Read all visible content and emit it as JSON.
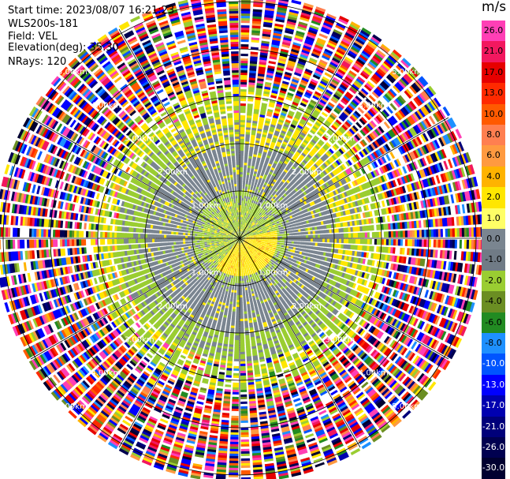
{
  "info": {
    "start_time": "Start time: 2023/08/07 16:21:23",
    "instrument": "WLS200s-181",
    "field": "Field: VEL",
    "elevation": "Elevation(deg): 35.30",
    "nrays": "NRays: 120"
  },
  "colorbar": {
    "unit": "m/s",
    "labels": [
      "26.0",
      "21.0",
      "17.0",
      "13.0",
      "10.0",
      "8.0",
      "6.0",
      "4.0",
      "2.0",
      "1.0",
      "0.0",
      "-1.0",
      "-2.0",
      "-4.0",
      "-6.0",
      "-8.0",
      "-10.0",
      "-13.0",
      "-17.0",
      "-21.0",
      "-26.0",
      "-30.0"
    ],
    "colors": [
      "#ff3fb5",
      "#f2185f",
      "#e60000",
      "#ff2a00",
      "#ff5a00",
      "#ff7f50",
      "#ff9a40",
      "#ffb300",
      "#ffe600",
      "#ffff66",
      "#7a8590",
      "#707b86",
      "#9acd32",
      "#6b8e23",
      "#228b22",
      "#1e90ff",
      "#0055ff",
      "#0000ff",
      "#0000b0",
      "#00007a",
      "#000050",
      "#000030"
    ],
    "label_colors": [
      "#000",
      "#000",
      "#000",
      "#000",
      "#000",
      "#000",
      "#000",
      "#000",
      "#000",
      "#000",
      "#000",
      "#000",
      "#000",
      "#000",
      "#000",
      "#000",
      "#fff",
      "#fff",
      "#fff",
      "#fff",
      "#fff",
      "#fff"
    ]
  },
  "chart_data": {
    "type": "heatmap",
    "projection": "polar PPI",
    "field": "VEL",
    "units": "m/s",
    "n_rays": 120,
    "range_ring_labels_km": [
      1.0,
      2.0,
      3.0,
      4.0,
      5.0
    ],
    "range_ring_text": [
      "1.00km",
      "2.00km",
      "3.00km",
      "4.00km",
      "5.00km"
    ],
    "spoke_angles_deg": [
      0,
      30,
      60,
      90,
      120,
      150,
      180,
      210,
      240,
      270,
      300,
      330
    ],
    "structure": {
      "inner_core_km": [
        0.0,
        1.0
      ],
      "core_values_ms": [
        -2.0,
        2.0
      ],
      "mid_band_km": [
        1.0,
        2.0
      ],
      "mid_band_values_ms": [
        -1.0,
        1.0
      ],
      "outer_ring_km": [
        2.0,
        3.0
      ],
      "outer_ring_values_ms": [
        -4.0,
        2.0
      ],
      "noise_start_km": 3.0,
      "max_range_km": 5.1
    }
  }
}
